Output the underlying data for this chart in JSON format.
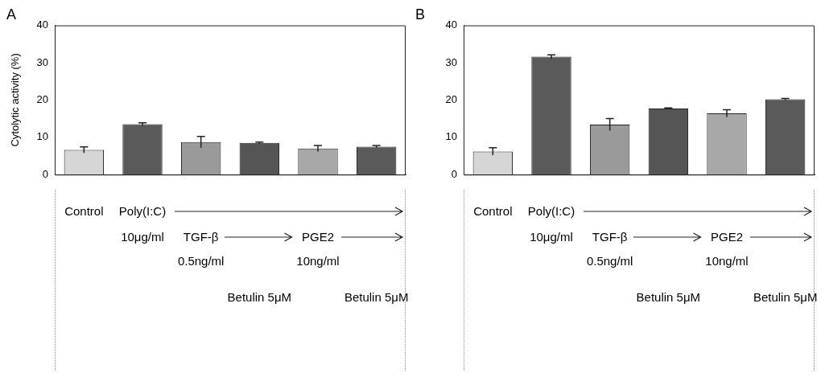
{
  "chart_data": [
    {
      "type": "bar",
      "title": "A",
      "ylabel": "Cytolytic activity (%)",
      "categories": [
        null,
        null,
        null,
        null,
        null,
        null
      ],
      "values": [
        6.6,
        13.5,
        8.7,
        8.5,
        7.0,
        7.5
      ],
      "errors": [
        0.8,
        0.4,
        1.5,
        0.2,
        0.8,
        0.3
      ],
      "colors": [
        "#d6d6d6",
        "#5a5a5a",
        "#9a9a9a",
        "#555555",
        "#a8a8a8",
        "#5a5a5a"
      ],
      "ylim": [
        0,
        40
      ],
      "yticks": [
        0,
        10,
        20,
        30,
        40
      ],
      "grid": false,
      "legend": false,
      "annotations": [
        "Control",
        "Poly(I:C)",
        "10μg/ml",
        "TGF-β",
        "0.5ng/ml",
        "PGE2",
        "10ng/ml",
        "Betulin 5μM",
        "Betulin 5μM"
      ]
    },
    {
      "type": "bar",
      "title": "B",
      "categories": [
        null,
        null,
        null,
        null,
        null,
        null
      ],
      "values": [
        6.2,
        31.6,
        13.4,
        17.7,
        16.4,
        20.2
      ],
      "errors": [
        1.0,
        0.5,
        1.6,
        0.2,
        1.0,
        0.2
      ],
      "colors": [
        "#d6d6d6",
        "#5a5a5a",
        "#9a9a9a",
        "#555555",
        "#a8a8a8",
        "#5a5a5a"
      ],
      "ylim": [
        0,
        40
      ],
      "yticks": [
        0,
        10,
        20,
        30,
        40
      ],
      "grid": false,
      "legend": false,
      "annotations": [
        "Control",
        "Poly(I:C)",
        "10μg/ml",
        "TGF-β",
        "0.5ng/ml",
        "PGE2",
        "10ng/ml",
        "Betulin 5μM",
        "Betulin 5μM"
      ]
    }
  ]
}
